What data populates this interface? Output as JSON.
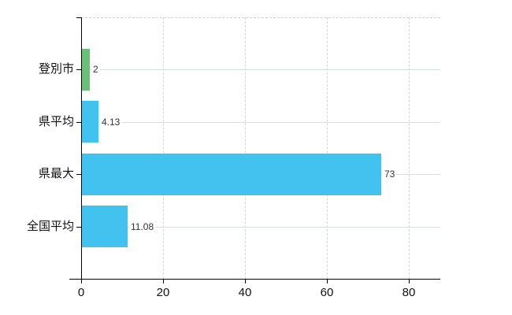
{
  "chart_data": {
    "type": "bar",
    "orientation": "horizontal",
    "title": "",
    "xlabel": "",
    "ylabel": "",
    "categories": [
      "登別市",
      "県平均",
      "県最大",
      "全国平均"
    ],
    "values": [
      2,
      4.13,
      73,
      11.08
    ],
    "value_labels": [
      "2",
      "4.13",
      "73",
      "11.08"
    ],
    "bar_colors": [
      "#69c077",
      "#42c2ef",
      "#42c2ef",
      "#42c2ef"
    ],
    "x_tick_labels": [
      "0",
      "20",
      "40",
      "60",
      "80"
    ],
    "x_tick_values": [
      0,
      20,
      40,
      60,
      80
    ],
    "xlim": [
      0,
      87.7
    ],
    "grid": {
      "vertical": "dashed",
      "horizontal": "solid",
      "top_border": "dashed"
    },
    "legend": "none"
  },
  "colors": {
    "background": "#ffffff",
    "bar_green": "#69c077",
    "bar_blue": "#42c2ef",
    "axis_line": "#000000",
    "grid_horizontal": "#d8ded8",
    "grid_vertical": "#d4d4d4",
    "top_border": "#cfcfcf",
    "category_text": "#111111",
    "tick_text": "#111111",
    "value_text": "#333333"
  }
}
